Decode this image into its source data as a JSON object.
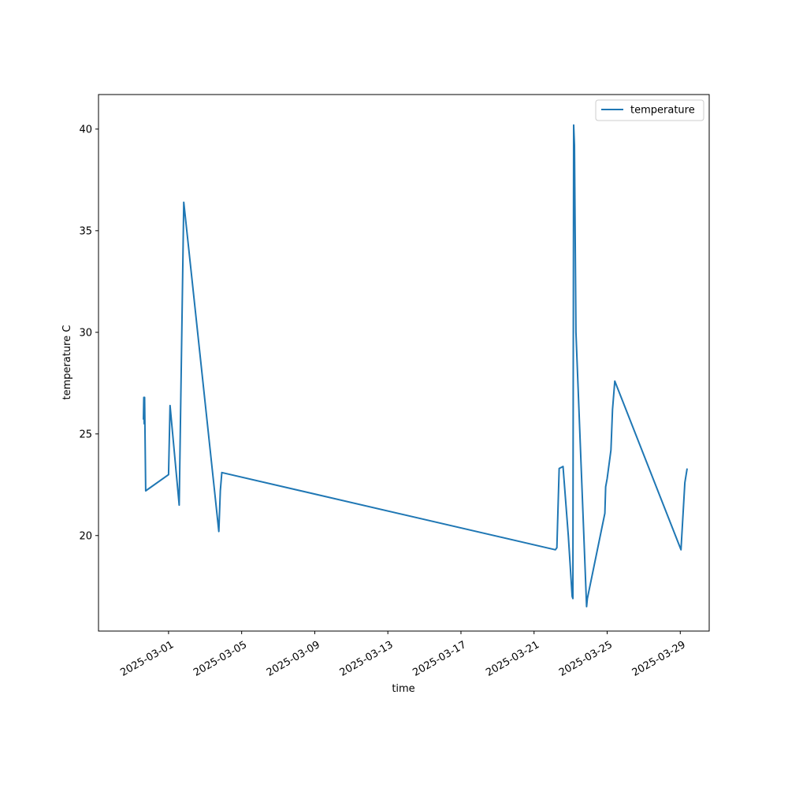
{
  "chart_data": {
    "type": "line",
    "xlabel": "time",
    "ylabel": "temperature C",
    "x_axis_type": "date",
    "xlim": [
      "2025-02-25T04:00",
      "2025-03-30T14:00"
    ],
    "ylim": [
      15.3,
      41.7
    ],
    "xticks": [
      "2025-03-01",
      "2025-03-05",
      "2025-03-09",
      "2025-03-13",
      "2025-03-17",
      "2025-03-21",
      "2025-03-25",
      "2025-03-29"
    ],
    "yticks": [
      20,
      25,
      30,
      35,
      40
    ],
    "legend": {
      "position": "top-right",
      "entries": [
        "temperature"
      ]
    },
    "grid": false,
    "colors": {
      "series": "#1f77b4",
      "axes": "#000000",
      "background": "#ffffff"
    },
    "series": [
      {
        "name": "temperature",
        "points": [
          [
            "2025-02-27T15:00",
            25.7
          ],
          [
            "2025-02-27T15:30",
            26.8
          ],
          [
            "2025-02-27T16:00",
            25.5
          ],
          [
            "2025-02-27T16:30",
            26.8
          ],
          [
            "2025-02-27T18:00",
            22.2
          ],
          [
            "2025-03-01T00:00",
            23.0
          ],
          [
            "2025-03-01T02:00",
            26.4
          ],
          [
            "2025-03-01T14:00",
            21.5
          ],
          [
            "2025-03-01T20:00",
            36.4
          ],
          [
            "2025-03-03T13:00",
            22.0
          ],
          [
            "2025-03-03T18:00",
            20.2
          ],
          [
            "2025-03-03T20:00",
            22.2
          ],
          [
            "2025-03-03T22:00",
            23.1
          ],
          [
            "2025-03-22T04:00",
            19.3
          ],
          [
            "2025-03-22T06:00",
            19.4
          ],
          [
            "2025-03-22T09:00",
            23.3
          ],
          [
            "2025-03-22T14:00",
            23.4
          ],
          [
            "2025-03-22T21:00",
            20.0
          ],
          [
            "2025-03-23T02:00",
            17.0
          ],
          [
            "2025-03-23T03:00",
            16.9
          ],
          [
            "2025-03-23T04:00",
            40.2
          ],
          [
            "2025-03-23T05:00",
            39.2
          ],
          [
            "2025-03-23T07:00",
            30.0
          ],
          [
            "2025-03-23T21:00",
            16.5
          ],
          [
            "2025-03-23T22:00",
            16.9
          ],
          [
            "2025-03-24T21:00",
            21.1
          ],
          [
            "2025-03-24T22:00",
            22.4
          ],
          [
            "2025-03-25T00:00",
            22.8
          ],
          [
            "2025-03-25T05:00",
            24.2
          ],
          [
            "2025-03-25T07:00",
            26.2
          ],
          [
            "2025-03-25T10:00",
            27.6
          ],
          [
            "2025-03-29T01:00",
            19.3
          ],
          [
            "2025-03-29T06:00",
            22.6
          ],
          [
            "2025-03-29T09:00",
            23.3
          ]
        ]
      }
    ]
  }
}
